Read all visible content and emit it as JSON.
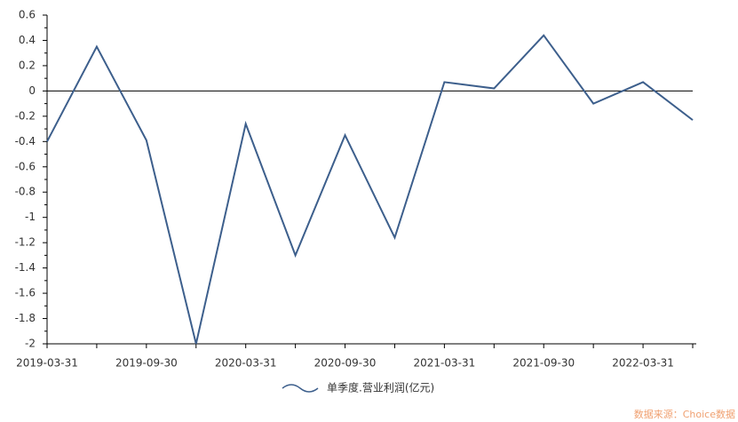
{
  "chart_data": {
    "type": "line",
    "categories": [
      "2019-03-31",
      null,
      "2019-09-30",
      null,
      "2020-03-31",
      null,
      "2020-09-30",
      null,
      "2021-03-31",
      null,
      "2021-09-30",
      null,
      "2022-03-31",
      null
    ],
    "series": [
      {
        "name": "单季度.营业利润(亿元)",
        "color": "#3d5f8c",
        "values": [
          -0.4,
          0.35,
          -0.39,
          -2.0,
          -0.26,
          -1.3,
          -0.35,
          -1.16,
          0.07,
          0.02,
          0.44,
          -0.1,
          0.07,
          -0.23
        ]
      }
    ],
    "ylim": [
      -2,
      0.6
    ],
    "yticks": [
      -2,
      -1.8,
      -1.6,
      -1.4,
      -1.2,
      -1,
      -0.8,
      -0.6,
      -0.4,
      -0.2,
      0,
      0.2,
      0.4,
      0.6
    ],
    "hline": 0,
    "legend": "bottom",
    "source": "数据来源：Choice数据"
  }
}
